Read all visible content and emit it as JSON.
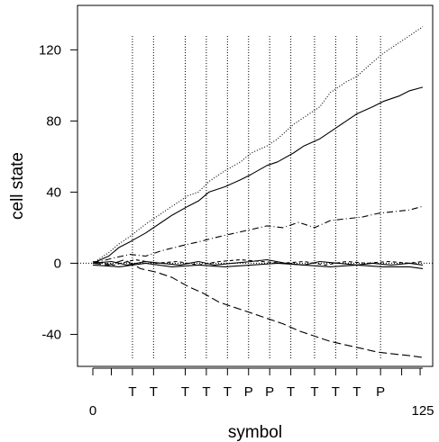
{
  "chart_data": {
    "type": "line",
    "xlabel": "symbol",
    "ylabel": "cell state",
    "xlim": [
      0,
      125
    ],
    "ylim": [
      -58,
      145
    ],
    "y_ticks": [
      -40,
      0,
      40,
      80,
      120
    ],
    "x_tick_labels": [
      {
        "x": 0,
        "label": "0"
      },
      {
        "x": 125,
        "label": "125"
      }
    ],
    "x_markers": [
      {
        "x": 0,
        "label": ""
      },
      {
        "x": 7,
        "label": ""
      },
      {
        "x": 15,
        "label": "T"
      },
      {
        "x": 23,
        "label": "T"
      },
      {
        "x": 35,
        "label": "T"
      },
      {
        "x": 43,
        "label": "T"
      },
      {
        "x": 51,
        "label": "T"
      },
      {
        "x": 59,
        "label": "P"
      },
      {
        "x": 67,
        "label": "P"
      },
      {
        "x": 75,
        "label": "T"
      },
      {
        "x": 84,
        "label": "T"
      },
      {
        "x": 92,
        "label": "T"
      },
      {
        "x": 100,
        "label": "T"
      },
      {
        "x": 109,
        "label": "P"
      },
      {
        "x": 117,
        "label": ""
      },
      {
        "x": 124,
        "label": ""
      }
    ],
    "vertical_reference_x": [
      15,
      23,
      35,
      43,
      51,
      59,
      67,
      75,
      84,
      92,
      100,
      109
    ],
    "horizontal_reference_y": 0,
    "series": [
      {
        "style": "dotted",
        "x": [
          0,
          6,
          10,
          14,
          20,
          26,
          30,
          36,
          40,
          44,
          50,
          56,
          60,
          66,
          70,
          76,
          80,
          86,
          90,
          96,
          100,
          106,
          110,
          116,
          120,
          125
        ],
        "y": [
          0,
          6,
          11,
          15,
          22,
          28,
          32,
          38,
          40,
          46,
          52,
          57,
          62,
          66,
          70,
          78,
          82,
          88,
          96,
          102,
          105,
          113,
          118,
          124,
          128,
          133
        ]
      },
      {
        "style": "solid",
        "x": [
          0,
          6,
          10,
          14,
          20,
          26,
          30,
          36,
          40,
          44,
          50,
          56,
          60,
          66,
          70,
          76,
          80,
          86,
          90,
          96,
          100,
          106,
          110,
          116,
          120,
          125
        ],
        "y": [
          0,
          4,
          9,
          12,
          17,
          23,
          27,
          32,
          35,
          40,
          43,
          47,
          50,
          55,
          57,
          62,
          66,
          70,
          74,
          80,
          84,
          88,
          91,
          94,
          97,
          99
        ]
      },
      {
        "style": "dash-dot",
        "x": [
          0,
          8,
          14,
          20,
          26,
          34,
          40,
          48,
          54,
          60,
          66,
          72,
          78,
          84,
          90,
          96,
          102,
          108,
          114,
          120,
          125
        ],
        "y": [
          0,
          3,
          5,
          4,
          7,
          10,
          12,
          15,
          17,
          19,
          21,
          20,
          23,
          20,
          24,
          25,
          26,
          28,
          29,
          30,
          32
        ]
      },
      {
        "style": "long-dash",
        "x": [
          0,
          6,
          12,
          18,
          24,
          30,
          36,
          42,
          48,
          54,
          60,
          66,
          72,
          78,
          84,
          90,
          96,
          102,
          108,
          114,
          120,
          125
        ],
        "y": [
          0,
          -1,
          2,
          -3,
          -5,
          -8,
          -13,
          -17,
          -22,
          -25,
          -28,
          -31,
          -34,
          -38,
          -41,
          -44,
          -46,
          -48,
          -50,
          -51,
          -52,
          -53
        ]
      },
      {
        "style": "solid",
        "x": [
          0,
          10,
          20,
          30,
          40,
          50,
          60,
          70,
          80,
          90,
          100,
          110,
          120,
          125
        ],
        "y": [
          -1,
          -2,
          0,
          -2,
          -1,
          -2,
          -1,
          0,
          -1,
          -2,
          -1,
          -2,
          -2,
          -3
        ]
      },
      {
        "style": "dashed",
        "x": [
          0,
          8,
          16,
          24,
          32,
          40,
          48,
          56,
          64,
          72,
          80,
          88,
          96,
          104,
          112,
          120,
          125
        ],
        "y": [
          1,
          -1,
          2,
          0,
          1,
          -1,
          1,
          2,
          1,
          0,
          1,
          -1,
          1,
          0,
          1,
          0,
          1
        ]
      },
      {
        "style": "solid",
        "x": [
          0,
          7,
          13,
          20,
          26,
          33,
          40,
          46,
          53,
          60,
          66,
          73,
          80,
          86,
          93,
          100,
          106,
          113,
          120,
          125
        ],
        "y": [
          0,
          1,
          -1,
          1,
          0,
          -1,
          1,
          -1,
          0,
          1,
          2,
          0,
          -1,
          1,
          0,
          -1,
          0,
          -1,
          0,
          -1
        ]
      }
    ]
  }
}
